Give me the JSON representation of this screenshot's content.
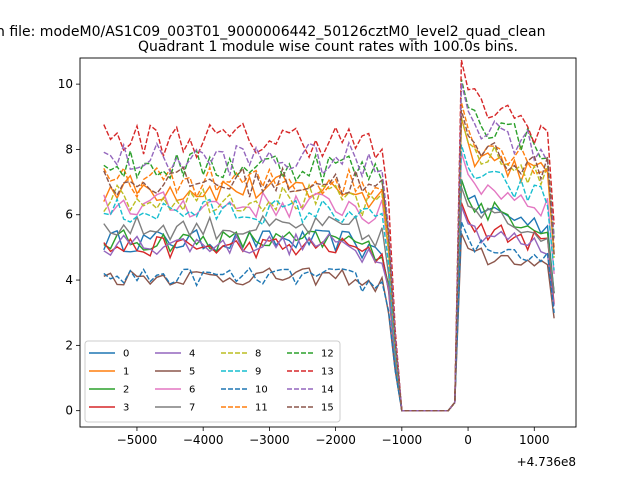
{
  "chart_data": {
    "type": "line",
    "suptitle": "n file: modeM0/AS1C09_003T01_9000006442_50126cztM0_level2_quad_clean",
    "title": "Quadrant 1 module wise count rates with 100.0s bins.",
    "xlabel": "",
    "ylabel": "",
    "x_offset_label": "+4.736e8",
    "xlim": [
      -5860,
      1630
    ],
    "ylim": [
      -0.5,
      10.8
    ],
    "xticks": [
      -5000,
      -4000,
      -3000,
      -2000,
      -1000,
      0,
      1000
    ],
    "xtick_labels": [
      "−5000",
      "−4000",
      "−3000",
      "−2000",
      "−1000",
      "0",
      "1000"
    ],
    "yticks": [
      0,
      2,
      4,
      6,
      8,
      10
    ],
    "ytick_labels": [
      "0",
      "2",
      "4",
      "6",
      "8",
      "10"
    ],
    "x_range": [
      -5500,
      1300
    ],
    "bin_size": 100,
    "gap": {
      "start": -1000,
      "end": -300
    },
    "legend_position": "lower-left",
    "series": [
      {
        "name": "0",
        "color": "#1f77b4",
        "style": "solid",
        "pre": 5.2,
        "post": 6.0,
        "drop": 0.3
      },
      {
        "name": "1",
        "color": "#ff7f0e",
        "style": "solid",
        "pre": 6.8,
        "post": 7.6,
        "drop": 0.6
      },
      {
        "name": "2",
        "color": "#2ca02c",
        "style": "solid",
        "pre": 5.2,
        "post": 6.0,
        "drop": 0.3
      },
      {
        "name": "3",
        "color": "#d62728",
        "style": "solid",
        "pre": 5.0,
        "post": 5.4,
        "drop": 0.3
      },
      {
        "name": "4",
        "color": "#9467bd",
        "style": "solid",
        "pre": 5.1,
        "post": 5.3,
        "drop": 0.3
      },
      {
        "name": "5",
        "color": "#8c564b",
        "style": "solid",
        "pre": 4.1,
        "post": 4.6,
        "drop": 0.3
      },
      {
        "name": "6",
        "color": "#e377c2",
        "style": "solid",
        "pre": 6.3,
        "post": 6.7,
        "drop": 0.5
      },
      {
        "name": "7",
        "color": "#7f7f7f",
        "style": "solid",
        "pre": 5.6,
        "post": 5.8,
        "drop": 0.4
      },
      {
        "name": "8",
        "color": "#bcbd22",
        "style": "dashed",
        "pre": 6.5,
        "post": 7.6,
        "drop": 0.5
      },
      {
        "name": "9",
        "color": "#17becf",
        "style": "dashed",
        "pre": 6.1,
        "post": 6.9,
        "drop": 0.5
      },
      {
        "name": "10",
        "color": "#1f77b4",
        "style": "dashed",
        "pre": 4.1,
        "post": 4.9,
        "drop": 0.3
      },
      {
        "name": "11",
        "color": "#ff7f0e",
        "style": "dashed",
        "pre": 7.0,
        "post": 8.0,
        "drop": 0.6
      },
      {
        "name": "12",
        "color": "#2ca02c",
        "style": "dashed",
        "pre": 7.5,
        "post": 8.6,
        "drop": 0.6
      },
      {
        "name": "13",
        "color": "#d62728",
        "style": "dashed",
        "pre": 8.3,
        "post": 9.1,
        "drop": 0.7
      },
      {
        "name": "14",
        "color": "#9467bd",
        "style": "dashed",
        "pre": 7.7,
        "post": 8.5,
        "drop": 0.6
      },
      {
        "name": "15",
        "color": "#8c564b",
        "style": "dashed",
        "pre": 7.0,
        "post": 7.8,
        "drop": 0.5
      }
    ]
  }
}
